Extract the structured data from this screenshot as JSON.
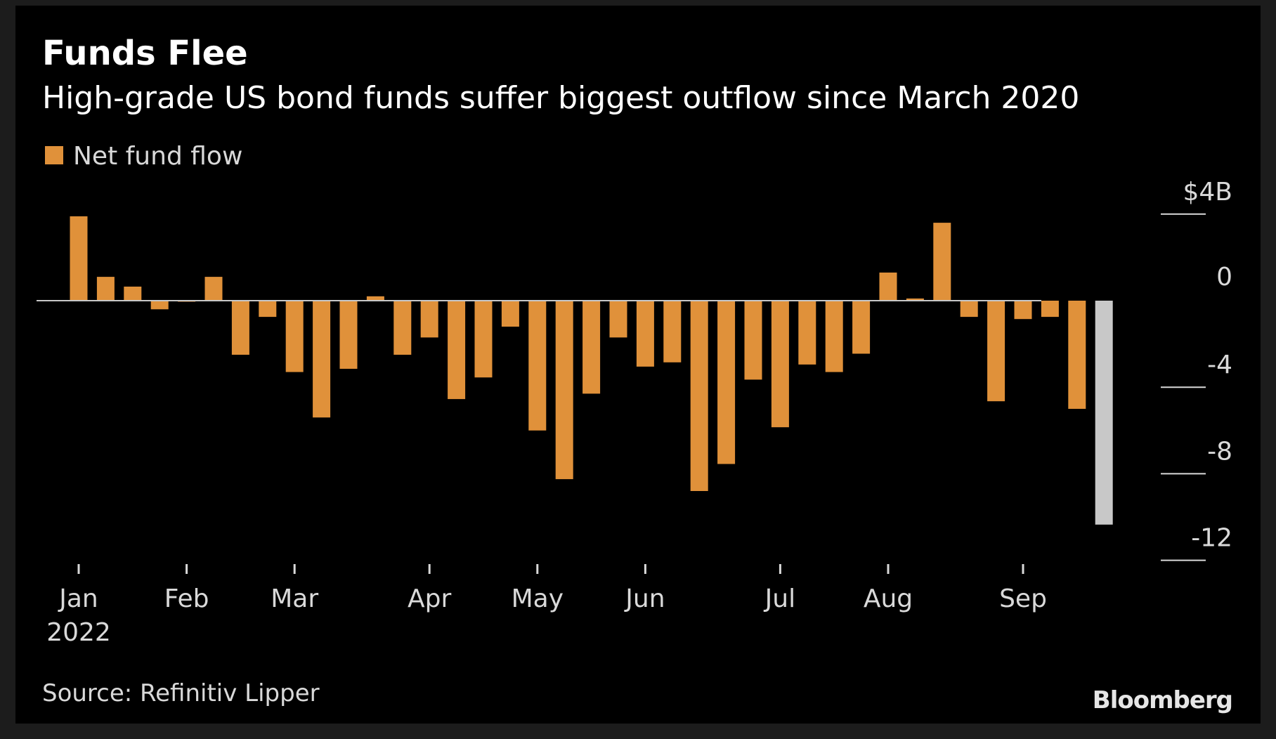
{
  "chart_data": {
    "type": "bar",
    "title": "Funds Flee",
    "subtitle": "High-grade US bond funds suffer biggest outflow since March 2020",
    "legend": [
      {
        "label": "Net fund flow",
        "color": "#e0913a"
      }
    ],
    "legend_position": "top-left",
    "source": "Source: Refinitiv Lipper",
    "brand": "Bloomberg",
    "colors": {
      "bar": "#e0913a",
      "highlight": "#c8c8c8",
      "zero_line": "#c8c8c8",
      "text": "#d9d9d9",
      "background": "#000000"
    },
    "y_axis": {
      "position": "right",
      "ylim": [
        -12,
        4
      ],
      "ticks": [
        {
          "value": 4,
          "label": "$4B"
        },
        {
          "value": 0,
          "label": "0"
        },
        {
          "value": -4,
          "label": "-4"
        },
        {
          "value": -8,
          "label": "-8"
        },
        {
          "value": -12,
          "label": "-12"
        }
      ]
    },
    "x_axis": {
      "ticks": [
        {
          "index": 0,
          "label": "Jan",
          "sublabel": "2022"
        },
        {
          "index": 4,
          "label": "Feb"
        },
        {
          "index": 8,
          "label": "Mar"
        },
        {
          "index": 13,
          "label": "Apr"
        },
        {
          "index": 17,
          "label": "May"
        },
        {
          "index": 21,
          "label": "Jun"
        },
        {
          "index": 26,
          "label": "Jul"
        },
        {
          "index": 30,
          "label": "Aug"
        },
        {
          "index": 35,
          "label": "Sep"
        }
      ]
    },
    "grid": false,
    "series": [
      {
        "name": "Net fund flow",
        "values": [
          3.9,
          1.1,
          0.65,
          -0.4,
          -0.05,
          1.1,
          -2.5,
          -0.75,
          -3.3,
          -5.4,
          -3.15,
          0.2,
          -2.5,
          -1.7,
          -4.55,
          -3.55,
          -1.2,
          -6.0,
          -8.25,
          -4.3,
          -1.7,
          -3.05,
          -2.85,
          -8.8,
          -7.55,
          -3.65,
          -5.85,
          -2.95,
          -3.3,
          -2.45,
          1.3,
          0.1,
          3.6,
          -0.75,
          -4.65,
          -0.85,
          -0.75,
          -5.0,
          -10.35
        ],
        "highlight_last": true
      }
    ]
  }
}
